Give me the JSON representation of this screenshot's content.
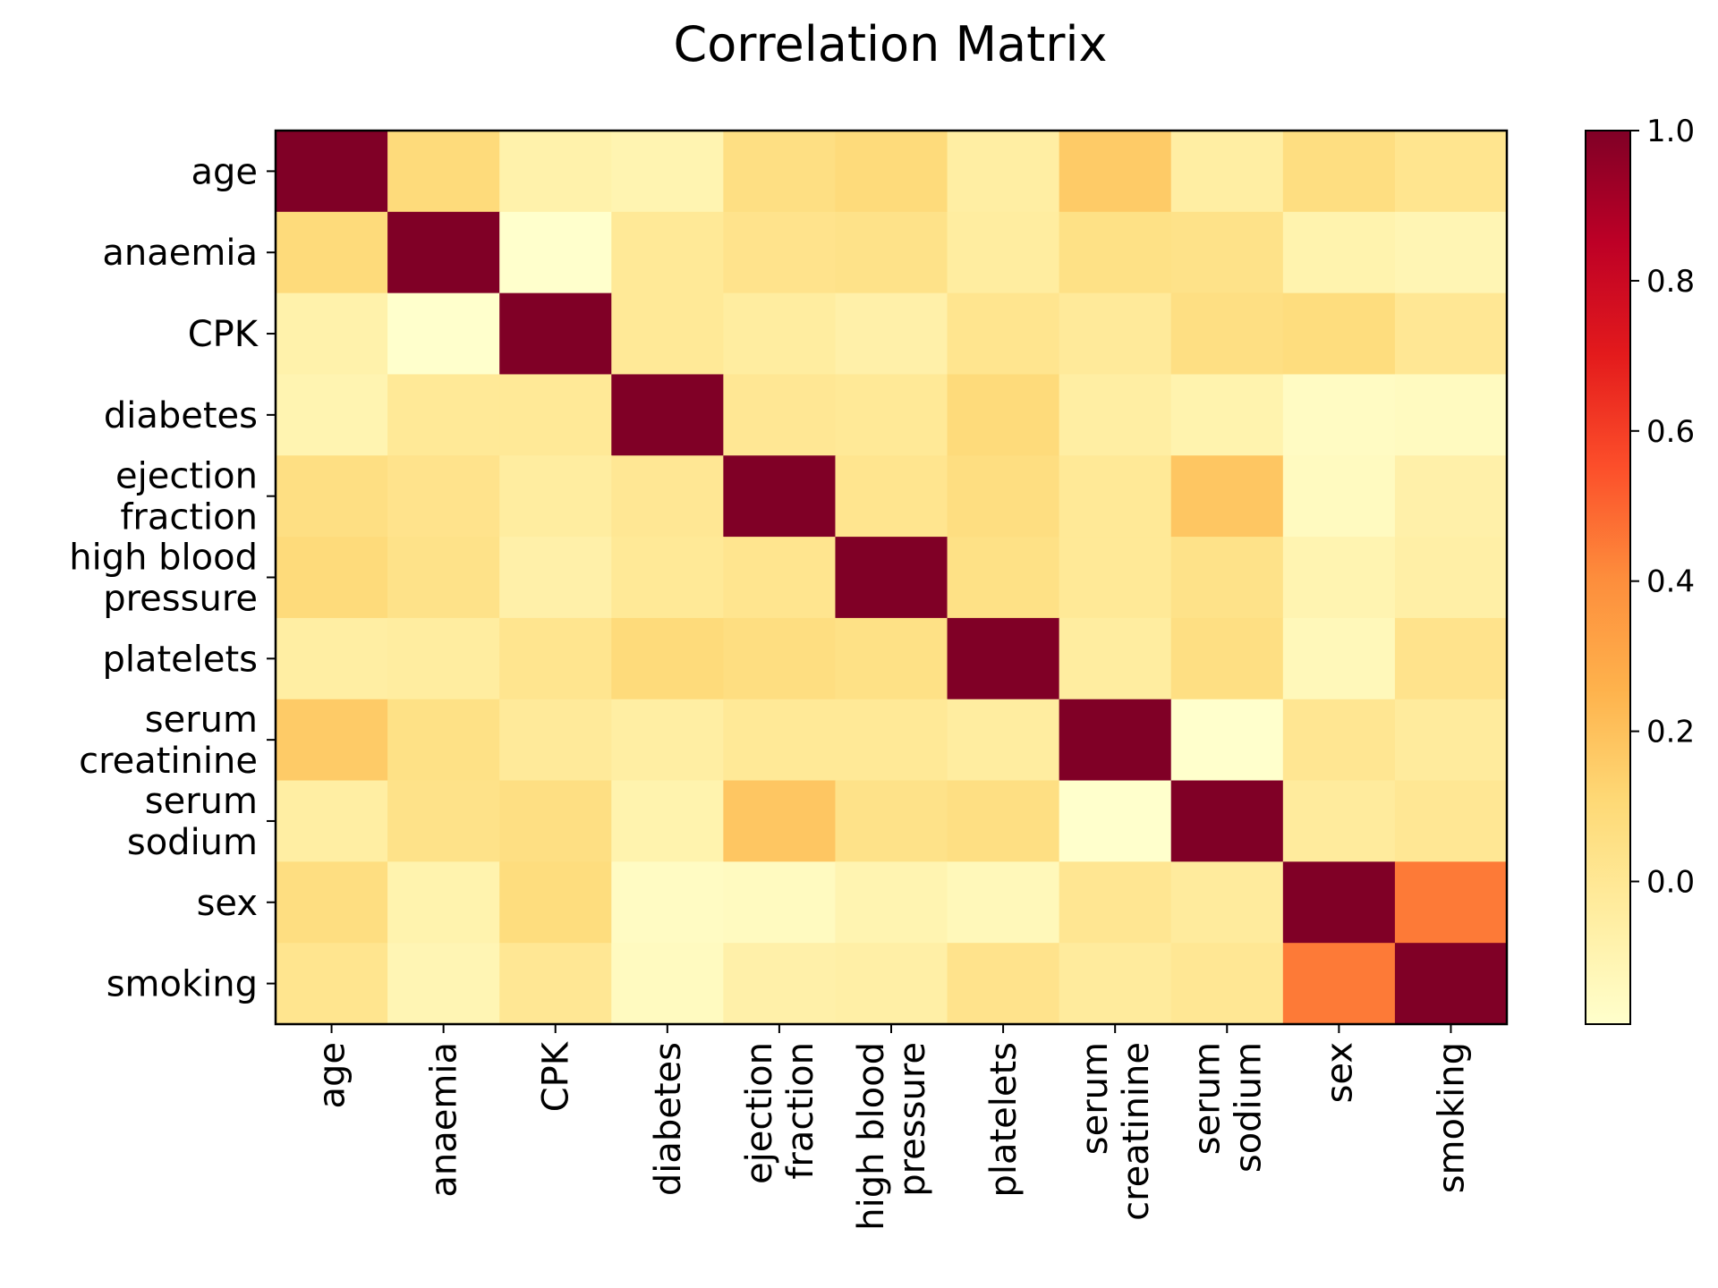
{
  "chart_data": {
    "type": "heatmap",
    "title": "Correlation Matrix",
    "xlabel": "",
    "ylabel": "",
    "variables": [
      "age",
      "anaemia",
      "CPK",
      "diabetes",
      "ejection\nfraction",
      "high blood\npressure",
      "platelets",
      "serum\ncreatinine",
      "serum\nsodium",
      "sex",
      "smoking"
    ],
    "matrix": [
      [
        1.0,
        0.09,
        -0.08,
        -0.1,
        0.06,
        0.09,
        -0.05,
        0.16,
        -0.05,
        0.07,
        0.02
      ],
      [
        0.09,
        1.0,
        -0.19,
        -0.01,
        0.03,
        0.04,
        -0.04,
        0.05,
        0.04,
        -0.09,
        -0.11
      ],
      [
        -0.08,
        -0.19,
        1.0,
        -0.01,
        -0.04,
        -0.07,
        0.02,
        -0.02,
        0.06,
        0.08,
        0.0
      ],
      [
        -0.1,
        -0.01,
        -0.01,
        1.0,
        0.0,
        -0.01,
        0.09,
        -0.05,
        -0.09,
        -0.16,
        -0.15
      ],
      [
        0.06,
        0.03,
        -0.04,
        0.0,
        1.0,
        0.02,
        0.07,
        -0.01,
        0.18,
        -0.15,
        -0.07
      ],
      [
        0.09,
        0.04,
        -0.07,
        -0.01,
        0.02,
        1.0,
        0.05,
        -0.01,
        0.04,
        -0.1,
        -0.06
      ],
      [
        -0.05,
        -0.04,
        0.02,
        0.09,
        0.07,
        0.05,
        1.0,
        -0.04,
        0.06,
        -0.13,
        0.03
      ],
      [
        0.16,
        0.05,
        -0.02,
        -0.05,
        -0.01,
        -0.01,
        -0.04,
        1.0,
        -0.19,
        0.01,
        -0.03
      ],
      [
        -0.05,
        0.04,
        0.06,
        -0.09,
        0.18,
        0.04,
        0.06,
        -0.19,
        1.0,
        -0.03,
        0.0
      ],
      [
        0.07,
        -0.09,
        0.08,
        -0.16,
        -0.15,
        -0.1,
        -0.13,
        0.01,
        -0.03,
        1.0,
        0.45
      ],
      [
        0.02,
        -0.11,
        0.0,
        -0.15,
        -0.07,
        -0.06,
        0.03,
        -0.03,
        0.0,
        0.45,
        1.0
      ]
    ],
    "colormap": "YlOrRd",
    "colormap_stops": [
      "#ffffcc",
      "#ffeda0",
      "#fed976",
      "#feb24c",
      "#fd8d3c",
      "#fc4e2a",
      "#e31a1c",
      "#bd0026",
      "#800026"
    ],
    "color_range": [
      -0.19,
      1.0
    ],
    "colorbar_ticks": [
      "0.0",
      "0.2",
      "0.4",
      "0.6",
      "0.8",
      "1.0"
    ],
    "colorbar_tick_values": [
      0.0,
      0.2,
      0.4,
      0.6,
      0.8,
      1.0
    ],
    "grid": false
  }
}
